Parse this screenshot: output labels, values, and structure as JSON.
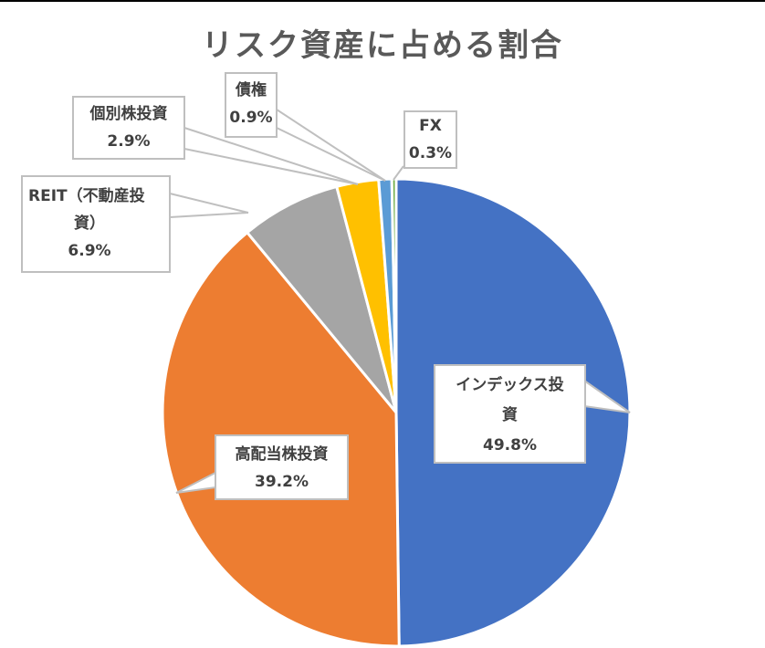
{
  "title": "リスク資産に占める割合",
  "chart_data": {
    "type": "pie",
    "title": "リスク資産に占める割合",
    "categories": [
      "インデックス投資",
      "高配当株投資",
      "REIT（不動産投資）",
      "個別株投資",
      "債権",
      "FX"
    ],
    "values": [
      49.8,
      39.2,
      6.9,
      2.9,
      0.9,
      0.3
    ],
    "labels": [
      "49.8%",
      "39.2%",
      "6.9%",
      "2.9%",
      "0.9%",
      "0.3%"
    ],
    "colors": [
      "#4472c4",
      "#ed7d31",
      "#a5a5a5",
      "#ffc000",
      "#5b9bd5",
      "#70ad47"
    ],
    "start_angle_deg": 0,
    "direction": "clockwise",
    "legend": "none"
  },
  "labels": {
    "index": {
      "name": "インデックス投",
      "name2": "資",
      "pct": "49.8%"
    },
    "highdiv": {
      "name": "高配当株投資",
      "pct": "39.2%"
    },
    "reit": {
      "name": "REIT（不動産投",
      "name2": "資）",
      "pct": "6.9%"
    },
    "stock": {
      "name": "個別株投資",
      "pct": "2.9%"
    },
    "bond": {
      "name": "債権",
      "pct": "0.9%"
    },
    "fx": {
      "name": "FX",
      "pct": "0.3%"
    }
  }
}
